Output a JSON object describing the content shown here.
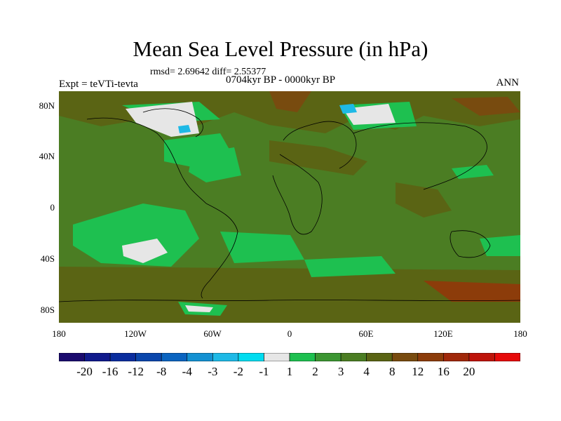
{
  "title": "Mean Sea Level Pressure (in hPa)",
  "stats": "rmsd= 2.69642 diff= 2.55377",
  "subtitle": "0704kyr BP - 0000kyr BP",
  "expt_label": "Expt = teVTi-tevta",
  "season": "ANN",
  "lat_labels": [
    "80N",
    "40N",
    "0",
    "40S",
    "80S"
  ],
  "lon_labels": [
    "180",
    "120W",
    "60W",
    "0",
    "60E",
    "120E",
    "180"
  ],
  "colorbar": {
    "colors": [
      "#1a0a6e",
      "#101a8c",
      "#0a2d9e",
      "#0a46ac",
      "#0a64c0",
      "#1491d2",
      "#1eb9e6",
      "#00dcf0",
      "#e6e6e6",
      "#1ec050",
      "#3c9632",
      "#4b7d23",
      "#5a6414",
      "#784b0f",
      "#8c3c0a",
      "#a0280a",
      "#be140a",
      "#e60a0a"
    ],
    "labels": [
      "-20",
      "-16",
      "-12",
      "-8",
      "-4",
      "-3",
      "-2",
      "-1",
      "1",
      "2",
      "3",
      "4",
      "8",
      "12",
      "16",
      "20"
    ]
  },
  "map_colors": {
    "base": "#4b7d23",
    "light_green": "#1ec050",
    "mid_green": "#3c9632",
    "brown": "#5a6414",
    "dark_brown": "#784b0f",
    "red_brown": "#8c3c0a",
    "white": "#e6e6e6",
    "cyan": "#1eb9e6"
  }
}
